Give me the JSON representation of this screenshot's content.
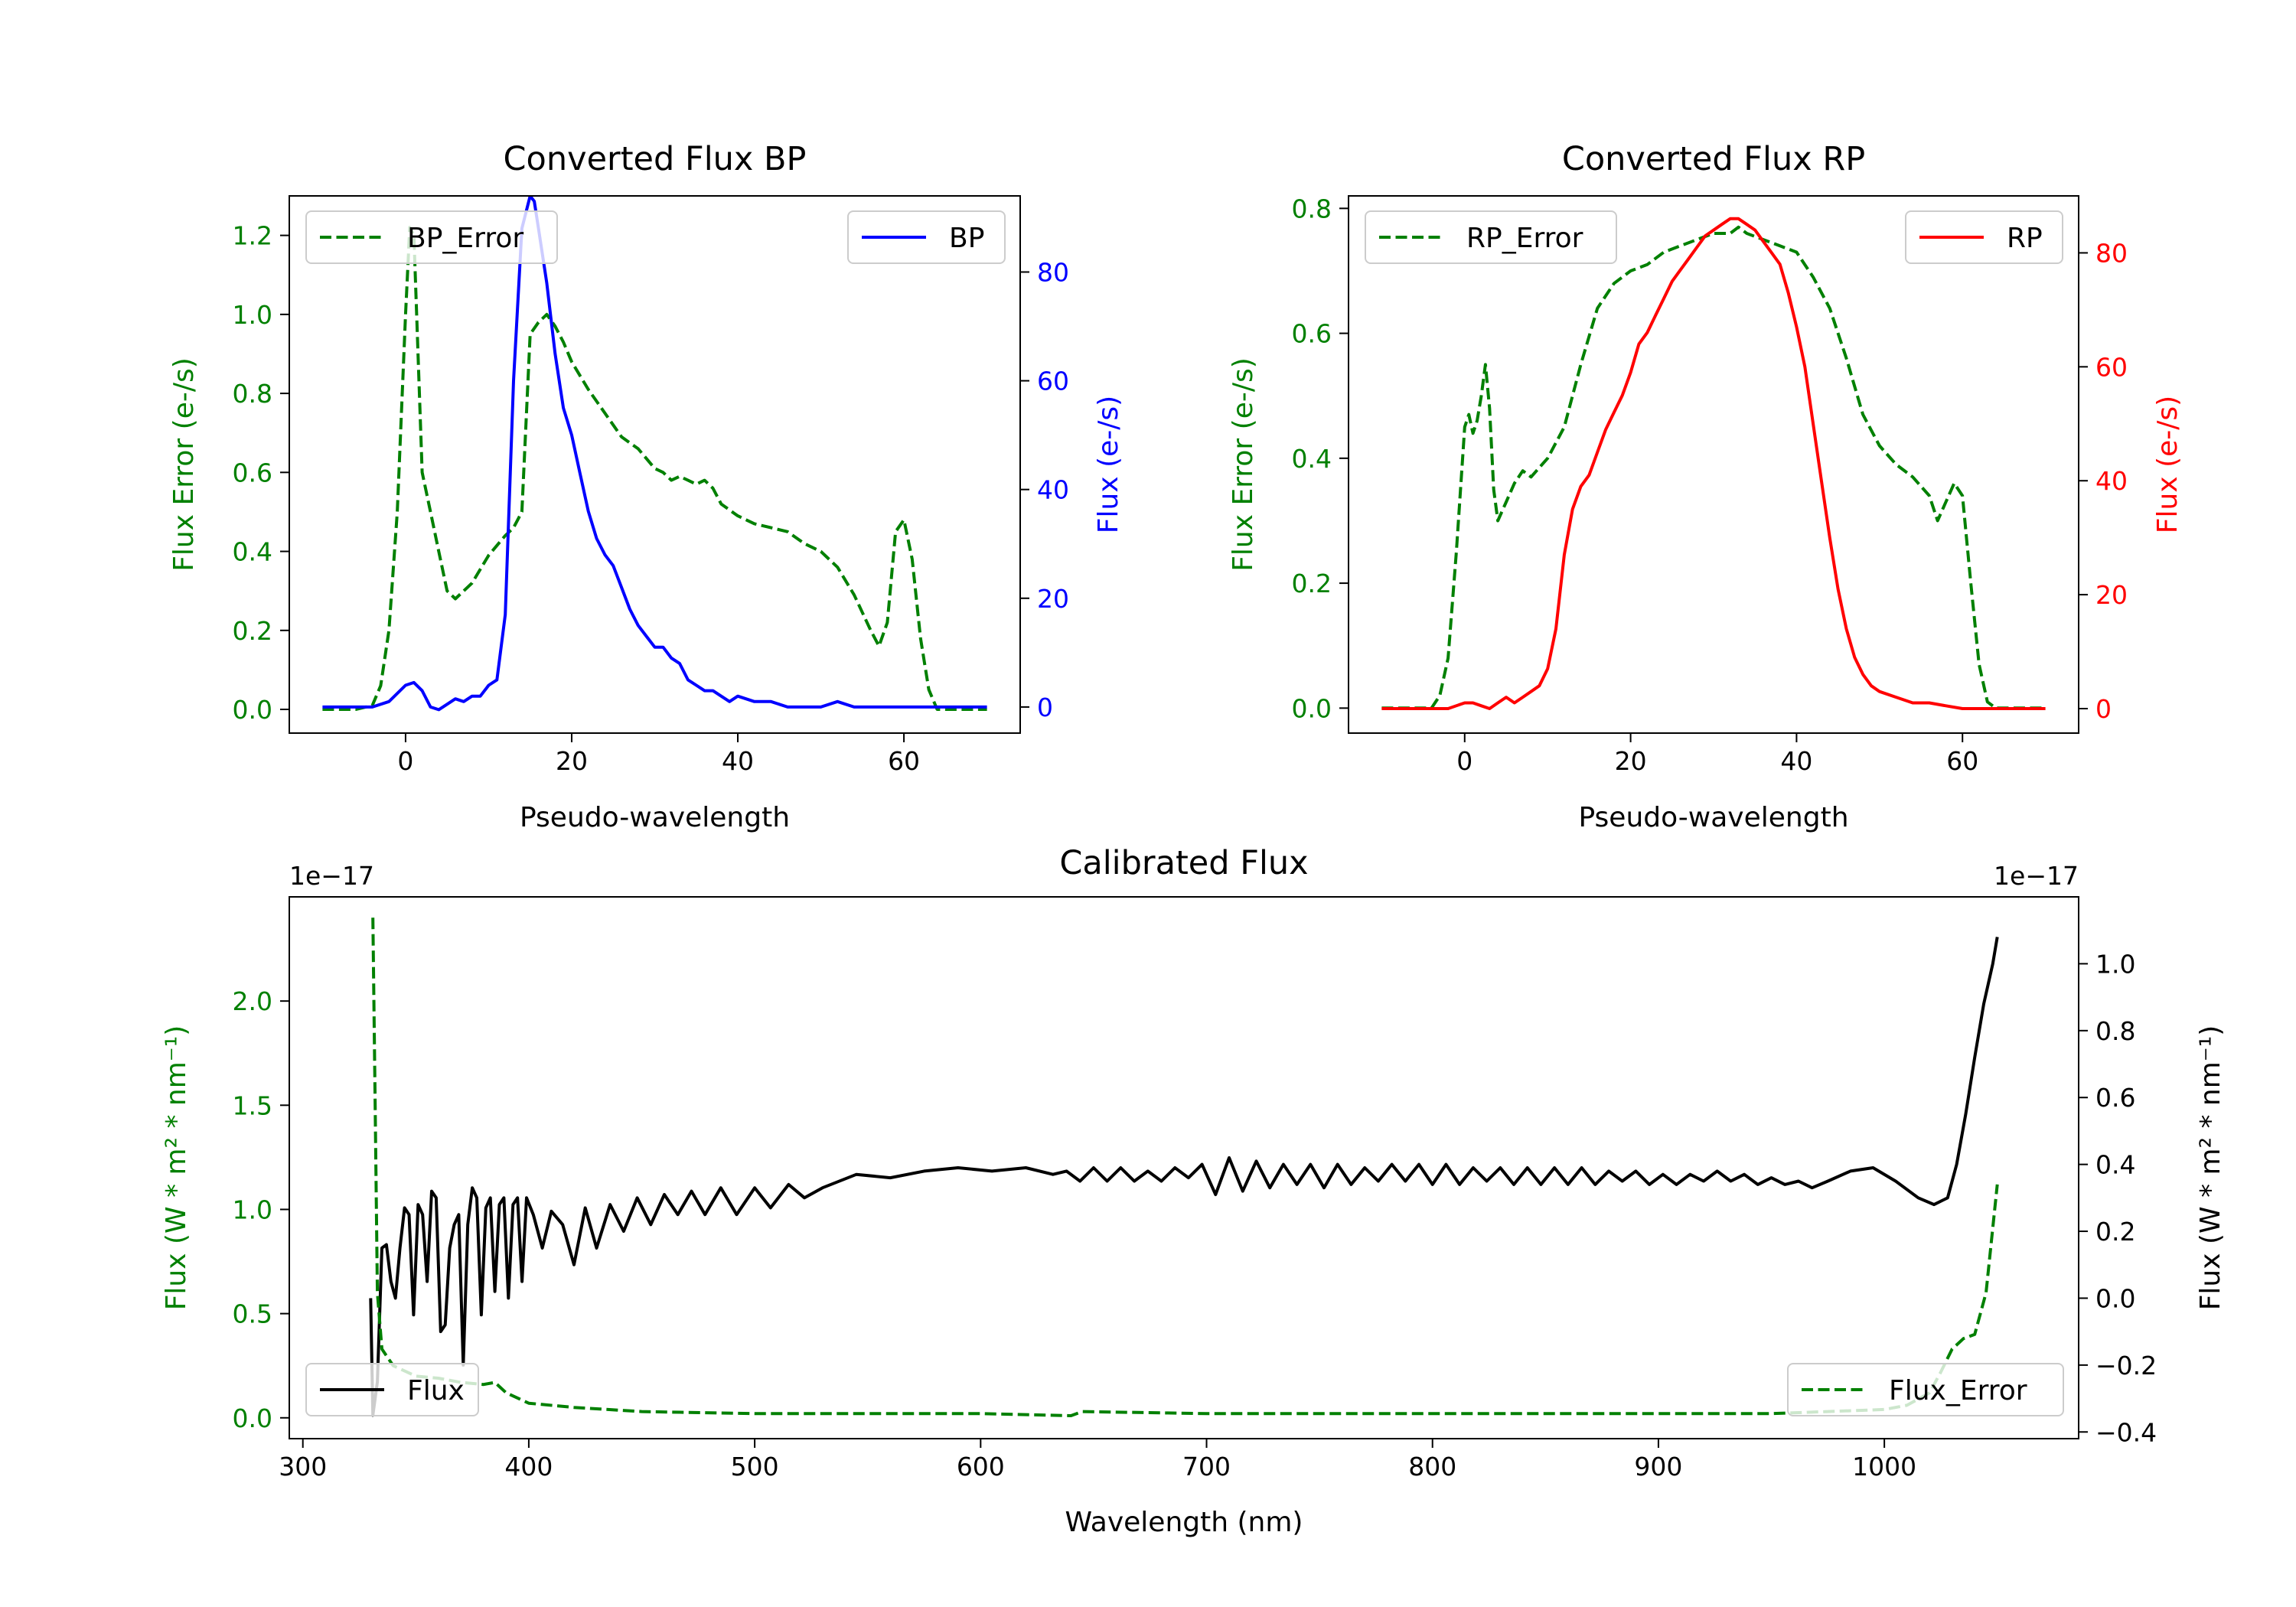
{
  "chart_data": [
    {
      "id": "bp",
      "type": "line",
      "title": "Converted Flux BP",
      "xlabel": "Pseudo-wavelength",
      "ylabel_left": "Flux Error (e-/s)",
      "ylabel_right": "Flux (e-/s)",
      "xlim": [
        -14,
        74
      ],
      "ylim_left": [
        -0.06,
        1.3
      ],
      "ylim_right": [
        -4.8,
        94
      ],
      "xticks": [
        0,
        20,
        40,
        60
      ],
      "yticks_left": [
        0.0,
        0.2,
        0.4,
        0.6,
        0.8,
        1.0,
        1.2
      ],
      "yticks_right": [
        0,
        20,
        40,
        60,
        80
      ],
      "ytick_labels_left": [
        "0.0",
        "0.2",
        "0.4",
        "0.6",
        "0.8",
        "1.0",
        "1.2"
      ],
      "legend_left": "BP_Error",
      "legend_right": "BP",
      "left_color": "#008000",
      "right_color": "#0000ff",
      "series": [
        {
          "name": "BP_Error",
          "axis": "left",
          "color": "#008000",
          "dash": true,
          "x": [
            -10,
            -6,
            -4,
            -3,
            -2,
            -1,
            0,
            0.5,
            1,
            1.5,
            2,
            3,
            4,
            5,
            6,
            7,
            8,
            10,
            12,
            13,
            14,
            15,
            16,
            17,
            18,
            19,
            20,
            22,
            24,
            26,
            28,
            30,
            31,
            32,
            33,
            34,
            35,
            36,
            37,
            38,
            40,
            42,
            44,
            46,
            48,
            50,
            52,
            54,
            56,
            57,
            58,
            59,
            60,
            61,
            62,
            63,
            64,
            66,
            70
          ],
          "y": [
            0.0,
            0.0,
            0.01,
            0.06,
            0.2,
            0.5,
            1.0,
            1.22,
            1.2,
            0.9,
            0.6,
            0.5,
            0.4,
            0.3,
            0.28,
            0.3,
            0.32,
            0.39,
            0.44,
            0.46,
            0.5,
            0.95,
            0.98,
            1.0,
            0.97,
            0.93,
            0.88,
            0.81,
            0.75,
            0.69,
            0.66,
            0.61,
            0.6,
            0.58,
            0.59,
            0.58,
            0.57,
            0.58,
            0.56,
            0.52,
            0.49,
            0.47,
            0.46,
            0.45,
            0.42,
            0.4,
            0.36,
            0.29,
            0.2,
            0.16,
            0.22,
            0.45,
            0.48,
            0.38,
            0.18,
            0.05,
            0.0,
            0.0,
            0.0
          ]
        },
        {
          "name": "BP",
          "axis": "right",
          "color": "#0000ff",
          "dash": false,
          "x": [
            -10,
            -4,
            -2,
            0,
            1,
            2,
            3,
            4,
            5,
            6,
            7,
            8,
            9,
            10,
            11,
            12,
            13,
            14,
            15,
            15.5,
            16,
            17,
            18,
            19,
            20,
            21,
            22,
            23,
            24,
            25,
            26,
            27,
            28,
            29,
            30,
            31,
            32,
            33,
            34,
            35,
            36,
            37,
            38,
            39,
            40,
            42,
            44,
            46,
            48,
            50,
            52,
            54,
            56,
            58,
            60,
            62,
            64,
            66,
            70
          ],
          "y": [
            0,
            0,
            1,
            4,
            4.5,
            3,
            0,
            -0.5,
            0.5,
            1.5,
            1,
            2,
            2,
            4,
            5,
            17,
            60,
            88,
            94,
            93,
            88,
            78,
            65,
            55,
            50,
            43,
            36,
            31,
            28,
            26,
            22,
            18,
            15,
            13,
            11,
            11,
            9,
            8,
            5,
            4,
            3,
            3,
            2,
            1,
            2,
            1,
            1,
            0,
            0,
            0,
            1,
            0,
            0,
            0,
            0,
            0,
            0,
            0,
            0
          ]
        }
      ]
    },
    {
      "id": "rp",
      "type": "line",
      "title": "Converted Flux RP",
      "xlabel": "Pseudo-wavelength",
      "ylabel_left": "Flux Error (e-/s)",
      "ylabel_right": "Flux (e-/s)",
      "xlim": [
        -14,
        74
      ],
      "ylim_left": [
        -0.04,
        0.82
      ],
      "ylim_right": [
        -4.3,
        90
      ],
      "xticks": [
        0,
        20,
        40,
        60
      ],
      "yticks_left": [
        0.0,
        0.2,
        0.4,
        0.6,
        0.8
      ],
      "yticks_right": [
        0,
        20,
        40,
        60,
        80
      ],
      "ytick_labels_left": [
        "0.0",
        "0.2",
        "0.4",
        "0.6",
        "0.8"
      ],
      "legend_left": "RP_Error",
      "legend_right": "RP",
      "left_color": "#008000",
      "right_color": "#ff0000",
      "series": [
        {
          "name": "RP_Error",
          "axis": "left",
          "color": "#008000",
          "dash": true,
          "x": [
            -10,
            -5,
            -4,
            -3,
            -2,
            -1,
            0,
            0.5,
            1,
            1.5,
            2,
            2.5,
            3,
            3.5,
            4,
            5,
            6,
            7,
            8,
            10,
            12,
            14,
            16,
            18,
            20,
            22,
            24,
            26,
            28,
            30,
            32,
            33,
            34,
            36,
            38,
            40,
            42,
            44,
            46,
            48,
            50,
            52,
            54,
            56,
            57,
            58,
            59,
            60,
            61,
            62,
            63,
            64,
            66,
            70
          ],
          "y": [
            0.0,
            0.0,
            0.0,
            0.02,
            0.08,
            0.25,
            0.45,
            0.47,
            0.44,
            0.46,
            0.5,
            0.55,
            0.48,
            0.35,
            0.3,
            0.33,
            0.36,
            0.38,
            0.37,
            0.4,
            0.45,
            0.55,
            0.64,
            0.68,
            0.7,
            0.71,
            0.73,
            0.74,
            0.75,
            0.76,
            0.76,
            0.77,
            0.76,
            0.75,
            0.74,
            0.73,
            0.69,
            0.64,
            0.56,
            0.47,
            0.42,
            0.39,
            0.37,
            0.34,
            0.3,
            0.33,
            0.36,
            0.34,
            0.2,
            0.07,
            0.01,
            0.0,
            0.0,
            0.0
          ]
        },
        {
          "name": "RP",
          "axis": "right",
          "color": "#ff0000",
          "dash": false,
          "x": [
            -10,
            -4,
            -2,
            0,
            1,
            2,
            3,
            4,
            5,
            6,
            7,
            8,
            9,
            10,
            11,
            12,
            13,
            14,
            15,
            16,
            17,
            18,
            19,
            20,
            21,
            22,
            23,
            24,
            25,
            26,
            27,
            28,
            29,
            30,
            31,
            32,
            33,
            34,
            35,
            36,
            37,
            38,
            39,
            40,
            41,
            42,
            43,
            44,
            45,
            46,
            47,
            48,
            49,
            50,
            52,
            54,
            56,
            58,
            60,
            62,
            66,
            70
          ],
          "y": [
            0,
            0,
            0,
            1,
            1,
            0.5,
            0,
            1,
            2,
            1,
            2,
            3,
            4,
            7,
            14,
            27,
            35,
            39,
            41,
            45,
            49,
            52,
            55,
            59,
            64,
            66,
            69,
            72,
            75,
            77,
            79,
            81,
            83,
            84,
            85,
            86,
            86,
            85,
            84,
            82,
            80,
            78,
            73,
            67,
            60,
            50,
            40,
            30,
            21,
            14,
            9,
            6,
            4,
            3,
            2,
            1,
            1,
            0.5,
            0,
            0,
            0,
            0
          ]
        }
      ]
    },
    {
      "id": "calibrated",
      "type": "line",
      "title": "Calibrated Flux",
      "xlabel": "Wavelength (nm)",
      "ylabel_left": "Flux (W * m² * nm⁻¹)",
      "ylabel_right": "Flux (W * m² * nm⁻¹)",
      "offset_left": "1e−17",
      "offset_right": "1e−17",
      "xlim": [
        294,
        1086
      ],
      "ylim_left": [
        -0.1,
        2.5
      ],
      "ylim_right": [
        -0.42,
        1.2
      ],
      "xticks": [
        300,
        400,
        500,
        600,
        700,
        800,
        900,
        1000
      ],
      "yticks_left": [
        0.0,
        0.5,
        1.0,
        1.5,
        2.0
      ],
      "yticks_right": [
        -0.4,
        -0.2,
        0.0,
        0.2,
        0.4,
        0.6,
        0.8,
        1.0
      ],
      "ytick_labels_left": [
        "0.0",
        "0.5",
        "1.0",
        "1.5",
        "2.0"
      ],
      "ytick_labels_right": [
        "−0.4",
        "−0.2",
        "0.0",
        "0.2",
        "0.4",
        "0.6",
        "0.8",
        "1.0"
      ],
      "legend_left": "Flux",
      "legend_right": "Flux_Error",
      "left_color": "#008000",
      "right_color": "#000000",
      "series": [
        {
          "name": "Flux",
          "axis": "right",
          "color": "#000000",
          "dash": false,
          "x": [
            330,
            331,
            333,
            335,
            337,
            339,
            341,
            343,
            345,
            347,
            349,
            351,
            353,
            355,
            357,
            359,
            361,
            363,
            365,
            367,
            369,
            371,
            373,
            375,
            377,
            379,
            381,
            383,
            385,
            387,
            389,
            391,
            393,
            395,
            397,
            399,
            402,
            406,
            410,
            415,
            420,
            425,
            430,
            436,
            442,
            448,
            454,
            460,
            466,
            472,
            478,
            485,
            492,
            500,
            507,
            515,
            522,
            530,
            545,
            560,
            575,
            590,
            605,
            620,
            632,
            638,
            644,
            650,
            656,
            662,
            668,
            674,
            680,
            686,
            692,
            698,
            704,
            710,
            716,
            722,
            728,
            734,
            740,
            746,
            752,
            758,
            764,
            770,
            776,
            782,
            788,
            794,
            800,
            806,
            812,
            818,
            824,
            830,
            836,
            842,
            848,
            854,
            860,
            866,
            872,
            878,
            884,
            890,
            896,
            902,
            908,
            914,
            920,
            926,
            932,
            938,
            944,
            950,
            956,
            962,
            968,
            975,
            985,
            995,
            1005,
            1015,
            1022,
            1028,
            1032,
            1036,
            1040,
            1044,
            1048,
            1050
          ],
          "y": [
            0.0,
            -0.35,
            -0.25,
            0.15,
            0.16,
            0.05,
            0.0,
            0.15,
            0.27,
            0.25,
            -0.05,
            0.28,
            0.25,
            0.05,
            0.32,
            0.3,
            -0.1,
            -0.08,
            0.15,
            0.22,
            0.25,
            -0.2,
            0.22,
            0.33,
            0.3,
            -0.05,
            0.27,
            0.3,
            0.02,
            0.28,
            0.3,
            0.0,
            0.28,
            0.3,
            0.05,
            0.3,
            0.25,
            0.15,
            0.26,
            0.22,
            0.1,
            0.27,
            0.15,
            0.28,
            0.2,
            0.3,
            0.22,
            0.31,
            0.25,
            0.32,
            0.25,
            0.33,
            0.25,
            0.33,
            0.27,
            0.34,
            0.3,
            0.33,
            0.37,
            0.36,
            0.38,
            0.39,
            0.38,
            0.39,
            0.37,
            0.38,
            0.35,
            0.39,
            0.35,
            0.39,
            0.35,
            0.38,
            0.35,
            0.39,
            0.36,
            0.4,
            0.31,
            0.42,
            0.32,
            0.41,
            0.33,
            0.4,
            0.34,
            0.4,
            0.33,
            0.4,
            0.34,
            0.39,
            0.35,
            0.4,
            0.35,
            0.4,
            0.34,
            0.4,
            0.34,
            0.39,
            0.35,
            0.39,
            0.34,
            0.39,
            0.34,
            0.39,
            0.34,
            0.39,
            0.34,
            0.38,
            0.35,
            0.38,
            0.34,
            0.37,
            0.34,
            0.37,
            0.35,
            0.38,
            0.35,
            0.37,
            0.34,
            0.36,
            0.34,
            0.35,
            0.33,
            0.35,
            0.38,
            0.39,
            0.35,
            0.3,
            0.28,
            0.3,
            0.4,
            0.55,
            0.72,
            0.88,
            1.0,
            1.08
          ]
        },
        {
          "name": "Flux_Error",
          "axis": "left",
          "color": "#008000",
          "dash": true,
          "x": [
            331,
            332,
            333,
            335,
            340,
            350,
            360,
            370,
            380,
            385,
            390,
            400,
            420,
            450,
            500,
            550,
            600,
            640,
            645,
            700,
            800,
            900,
            950,
            1000,
            1010,
            1020,
            1025,
            1030,
            1035,
            1040,
            1045,
            1050
          ],
          "y": [
            2.4,
            1.5,
            0.6,
            0.33,
            0.25,
            0.2,
            0.19,
            0.17,
            0.16,
            0.17,
            0.12,
            0.07,
            0.05,
            0.03,
            0.02,
            0.02,
            0.02,
            0.01,
            0.03,
            0.02,
            0.02,
            0.02,
            0.02,
            0.04,
            0.06,
            0.12,
            0.22,
            0.33,
            0.38,
            0.4,
            0.6,
            1.12
          ]
        }
      ]
    }
  ]
}
